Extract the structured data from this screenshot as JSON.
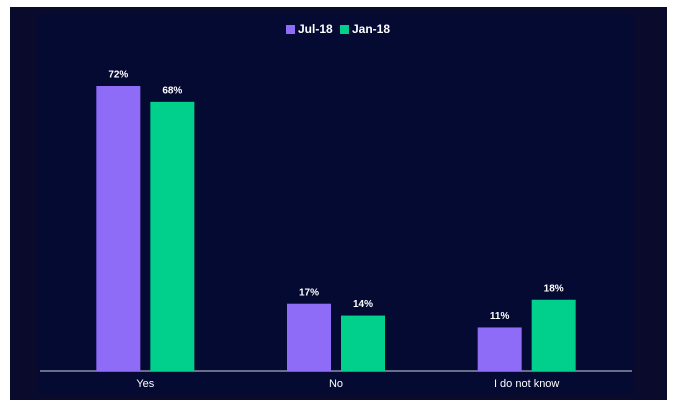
{
  "chart_data": {
    "type": "bar",
    "categories": [
      "Yes",
      "No",
      "I do not know"
    ],
    "series": [
      {
        "name": "Jul-18",
        "color": "#8f6cf8",
        "values": [
          72,
          17,
          11
        ],
        "value_labels": [
          "72%",
          "17%",
          "11%"
        ]
      },
      {
        "name": "Jan-18",
        "color": "#00d08c",
        "values": [
          68,
          14,
          18
        ],
        "value_labels": [
          "68%",
          "14%",
          "18%"
        ]
      }
    ]
  }
}
